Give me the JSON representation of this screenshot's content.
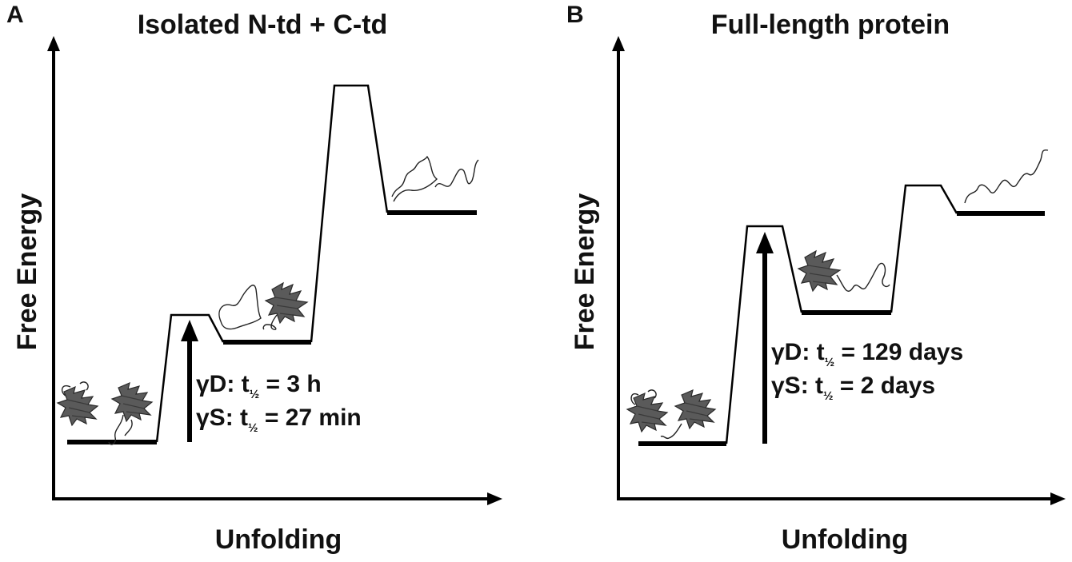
{
  "panels": [
    {
      "letter": "A",
      "title": "Isolated N-td + C-td",
      "y_axis_label": "Free Energy",
      "x_axis_label": "Unfolding",
      "rates": [
        {
          "prefix": "γD: t",
          "value": " = 3 h"
        },
        {
          "prefix": "γS: t",
          "value": " = 27 min"
        }
      ]
    },
    {
      "letter": "B",
      "title": "Full-length protein",
      "y_axis_label": "Free Energy",
      "x_axis_label": "Unfolding",
      "rates": [
        {
          "prefix": "γD: t",
          "value": " = 129 days"
        },
        {
          "prefix": "γS: t",
          "value": " = 2 days"
        }
      ]
    }
  ],
  "half_subscript": "½"
}
